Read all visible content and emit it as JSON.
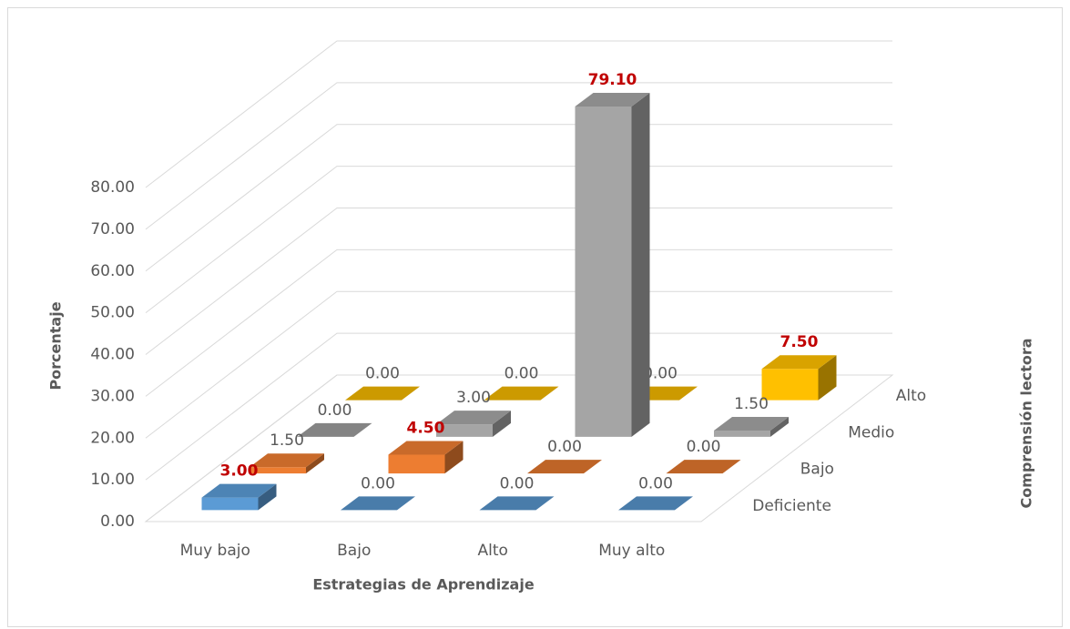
{
  "chart_data": {
    "type": "bar3d",
    "x_label": "Estrategias de Aprendizaje",
    "y_label": "Porcentaje",
    "depth_label": "Comprensión lectora",
    "categories": [
      "Muy bajo",
      "Bajo",
      "Alto",
      "Muy alto"
    ],
    "series": [
      {
        "name": "Deficiente",
        "color": "#5b9bd5",
        "values": [
          3,
          0,
          0,
          0
        ],
        "value_labels": [
          "3.00",
          "0.00",
          "0.00",
          "0.00"
        ],
        "label_colors": [
          "#c00000",
          "#595959",
          "#595959",
          "#595959"
        ]
      },
      {
        "name": "Bajo",
        "color": "#ed7d31",
        "values": [
          1.5,
          4.5,
          0,
          0
        ],
        "value_labels": [
          "1.50",
          "4.50",
          "0.00",
          "0.00"
        ],
        "label_colors": [
          "#595959",
          "#c00000",
          "#595959",
          "#595959"
        ]
      },
      {
        "name": "Medio",
        "color": "#a5a5a5",
        "values": [
          0,
          3,
          79.1,
          1.5
        ],
        "value_labels": [
          "0.00",
          "3.00",
          "79.10",
          "1.50"
        ],
        "label_colors": [
          "#595959",
          "#595959",
          "#c00000",
          "#595959"
        ]
      },
      {
        "name": "Alto",
        "color": "#ffc000",
        "values": [
          0,
          0,
          0,
          7.5
        ],
        "value_labels": [
          "0.00",
          "0.00",
          "0.00",
          "7.50"
        ],
        "label_colors": [
          "#595959",
          "#595959",
          "#595959",
          "#c00000"
        ]
      }
    ],
    "ylim": [
      0,
      80
    ],
    "yticks": [
      {
        "value": 0,
        "label": "0.00"
      },
      {
        "value": 10,
        "label": "10.00"
      },
      {
        "value": 20,
        "label": "20.00"
      },
      {
        "value": 30,
        "label": "30.00"
      },
      {
        "value": 40,
        "label": "40.00"
      },
      {
        "value": 50,
        "label": "50.00"
      },
      {
        "value": 60,
        "label": "60.00"
      },
      {
        "value": 70,
        "label": "70.00"
      },
      {
        "value": 80,
        "label": "80.00"
      }
    ],
    "grid": true
  }
}
